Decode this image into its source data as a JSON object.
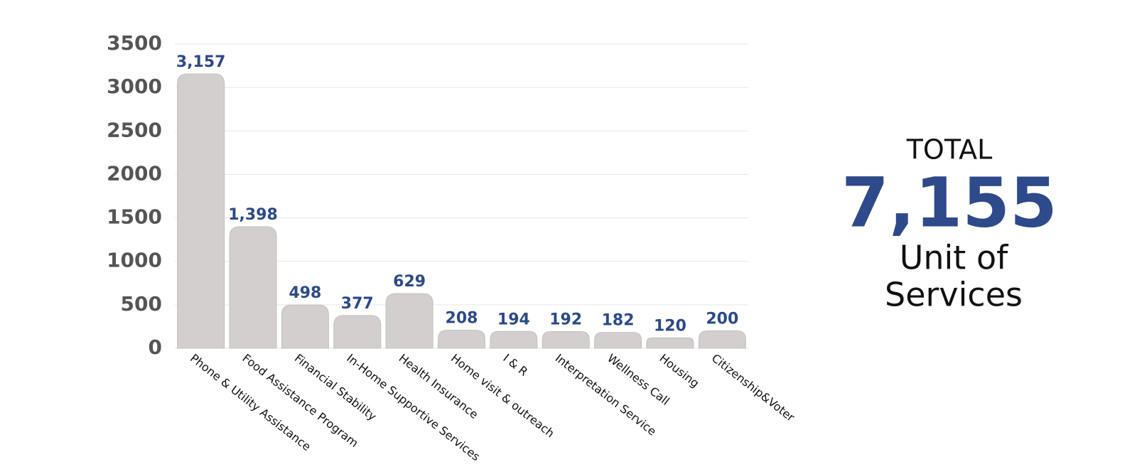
{
  "chart_data": {
    "type": "bar",
    "categories": [
      "Phone & Utility Assistance",
      "Food Assistance Program",
      "Financial Stability",
      "In-Home Supportive Services",
      "Health Insurance",
      "Home visit & outreach",
      "I & R",
      "Interpretation Service",
      "Wellness Call",
      "Housing",
      "Citizenship&Voter"
    ],
    "values": [
      3157,
      1398,
      498,
      377,
      629,
      208,
      194,
      192,
      182,
      120,
      200
    ],
    "value_labels": [
      "3,157",
      "1,398",
      "498",
      "377",
      "629",
      "208",
      "194",
      "192",
      "182",
      "120",
      "200"
    ],
    "color": "#d3cfcf",
    "ylim": [
      0,
      3500
    ],
    "yticks": [
      0,
      500,
      1000,
      1500,
      2000,
      2500,
      3000,
      3500
    ],
    "grid": true
  },
  "total": {
    "label": "TOTAL",
    "value": "7,155",
    "caption": [
      "Unit of",
      "Services"
    ]
  }
}
